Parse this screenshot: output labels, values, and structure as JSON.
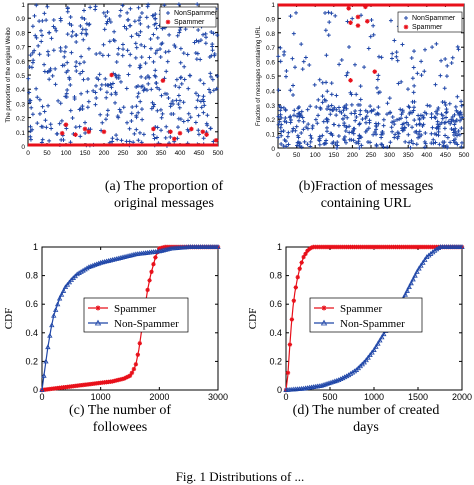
{
  "captions": {
    "a": "(a) The proportion of\noriginal messages",
    "b": "(b)Fraction of messages\ncontaining URL",
    "c": "(c) The number of\nfollowees",
    "d": "(d) The number of created\ndays",
    "figure": "Fig. 1 Distributions of ..."
  },
  "colors": {
    "spammer": "#e8101a",
    "nonspammer": "#1f46a8"
  },
  "chart_data": [
    {
      "id": "a",
      "type": "scatter",
      "ylabel": "The proportion of the original Weibo",
      "xlim": [
        0,
        500
      ],
      "ylim": [
        0,
        1
      ],
      "xticks": [
        0,
        50,
        100,
        150,
        200,
        250,
        300,
        350,
        400,
        450,
        500
      ],
      "yticks": [
        0,
        0.1,
        0.2,
        0.3,
        0.4,
        0.5,
        0.6,
        0.7,
        0.8,
        0.9,
        1
      ],
      "legend": {
        "position": "top-right",
        "entries": [
          "NonSpammer",
          "Spammer"
        ]
      },
      "series": [
        {
          "name": "NonSpammer",
          "marker": "+",
          "description": "uniform scatter",
          "n": 500,
          "distribution": "uniform",
          "range": [
            0,
            1
          ]
        },
        {
          "name": "Spammer",
          "marker": "*",
          "description": "mostly at 0, few 0.05-0.5",
          "baseline": 0,
          "outliers": [
            [
              100,
              0.15
            ],
            [
              150,
              0.12
            ],
            [
              200,
              0.1
            ],
            [
              220,
              0.5
            ],
            [
              330,
              0.12
            ],
            [
              375,
              0.1
            ],
            [
              400,
              0.09
            ],
            [
              460,
              0.1
            ],
            [
              470,
              0.08
            ],
            [
              495,
              0.04
            ],
            [
              90,
              0.09
            ],
            [
              160,
              0.1
            ],
            [
              125,
              0.08
            ],
            [
              355,
              0.46
            ],
            [
              385,
              0.05
            ],
            [
              430,
              0.12
            ]
          ]
        }
      ]
    },
    {
      "id": "b",
      "type": "scatter",
      "ylabel": "Fraction of messages containing URL",
      "xlim": [
        0,
        500
      ],
      "ylim": [
        0,
        1
      ],
      "xticks": [
        0,
        50,
        100,
        150,
        200,
        250,
        300,
        350,
        400,
        450,
        500
      ],
      "yticks": [
        0,
        0.1,
        0.2,
        0.3,
        0.4,
        0.5,
        0.6,
        0.7,
        0.8,
        0.9,
        1
      ],
      "legend": {
        "position": "top-right",
        "entries": [
          "NonSpammer",
          "Spammer"
        ]
      },
      "series": [
        {
          "name": "NonSpammer",
          "marker": "+",
          "description": "dense 0-0.3, sparse above",
          "n": 500
        },
        {
          "name": "Spammer",
          "marker": "*",
          "description": "mostly at 1",
          "baseline": 1,
          "outliers": [
            [
              195,
              0.87
            ],
            [
              215,
              0.91
            ],
            [
              240,
              0.88
            ],
            [
              215,
              0.85
            ],
            [
              195,
              0.47
            ],
            [
              260,
              0.53
            ],
            [
              235,
              0.98
            ],
            [
              190,
              0.97
            ]
          ]
        }
      ]
    },
    {
      "id": "c",
      "type": "line",
      "ylabel": "CDF",
      "xlim": [
        0,
        3000
      ],
      "ylim": [
        0,
        1
      ],
      "xticks": [
        0,
        1000,
        2000,
        3000
      ],
      "yticks": [
        0,
        0.2,
        0.4,
        0.6,
        0.8,
        1
      ],
      "legend": {
        "position": "center-left",
        "entries": [
          "Spammer",
          "Non-Spammer"
        ]
      },
      "series": [
        {
          "name": "Spammer",
          "marker": "*",
          "x": [
            0,
            200,
            400,
            600,
            800,
            1000,
            1200,
            1400,
            1500,
            1550,
            1600,
            1650,
            1700,
            1750,
            1800,
            1850,
            1900,
            1950,
            2000,
            2100,
            2400,
            3000
          ],
          "y": [
            0,
            0.01,
            0.02,
            0.03,
            0.04,
            0.05,
            0.06,
            0.08,
            0.1,
            0.13,
            0.18,
            0.28,
            0.42,
            0.57,
            0.7,
            0.8,
            0.88,
            0.95,
            0.99,
            1.0,
            1.0,
            1.0
          ]
        },
        {
          "name": "Non-Spammer",
          "marker": "triangle",
          "x": [
            0,
            50,
            100,
            150,
            200,
            300,
            400,
            500,
            600,
            800,
            1000,
            1200,
            1400,
            1600,
            1800,
            2000,
            2200,
            2500,
            3000
          ],
          "y": [
            0,
            0.15,
            0.3,
            0.42,
            0.52,
            0.64,
            0.72,
            0.77,
            0.81,
            0.86,
            0.89,
            0.91,
            0.93,
            0.95,
            0.96,
            0.97,
            0.99,
            1.0,
            1.0
          ]
        }
      ]
    },
    {
      "id": "d",
      "type": "line",
      "ylabel": "CDF",
      "xlim": [
        0,
        2000
      ],
      "ylim": [
        0,
        1
      ],
      "xticks": [
        0,
        500,
        1000,
        1500,
        2000
      ],
      "yticks": [
        0,
        0.2,
        0.4,
        0.6,
        0.8,
        1
      ],
      "legend": {
        "position": "center-right",
        "entries": [
          "Spammer",
          "Non-Spammer"
        ]
      },
      "series": [
        {
          "name": "Spammer",
          "marker": "*",
          "x": [
            0,
            20,
            40,
            60,
            80,
            100,
            130,
            160,
            200,
            250,
            300,
            400,
            600,
            1000,
            2000
          ],
          "y": [
            0,
            0.1,
            0.28,
            0.45,
            0.58,
            0.68,
            0.78,
            0.86,
            0.93,
            0.98,
            1.0,
            1.0,
            1.0,
            1.0,
            1.0
          ]
        },
        {
          "name": "Non-Spammer",
          "marker": "triangle",
          "x": [
            0,
            100,
            200,
            300,
            400,
            500,
            600,
            700,
            800,
            900,
            1000,
            1100,
            1200,
            1300,
            1400,
            1500,
            1600,
            1700,
            1750,
            1800,
            2000
          ],
          "y": [
            0,
            0.005,
            0.01,
            0.02,
            0.03,
            0.05,
            0.07,
            0.1,
            0.14,
            0.2,
            0.28,
            0.38,
            0.48,
            0.6,
            0.72,
            0.84,
            0.93,
            0.98,
            1.0,
            1.0,
            1.0
          ]
        }
      ]
    }
  ]
}
